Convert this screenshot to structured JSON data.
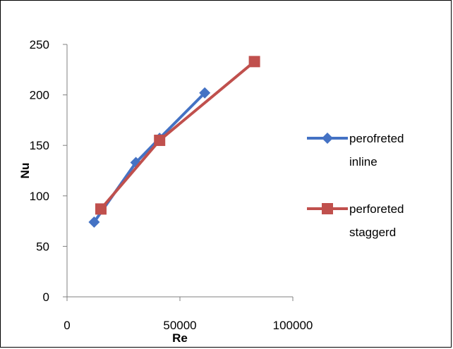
{
  "chart_data": {
    "type": "line",
    "title": "",
    "xlabel": "Re",
    "ylabel": "Nu",
    "xlim": [
      0,
      100000
    ],
    "ylim": [
      0,
      250
    ],
    "xticks": [
      0,
      50000,
      100000
    ],
    "yticks": [
      0,
      50,
      100,
      150,
      200,
      250
    ],
    "xtick_labels": [
      "0",
      "50000",
      "100000"
    ],
    "ytick_labels": [
      "0",
      "50",
      "100",
      "150",
      "200",
      "250"
    ],
    "grid": false,
    "legend_position": "right",
    "series": [
      {
        "name": "perofreted inline",
        "name_lines": [
          "perofreted",
          "inline"
        ],
        "color": "#4472C4",
        "marker": "diamond",
        "points": [
          {
            "x": 12000,
            "y": 74
          },
          {
            "x": 30500,
            "y": 133
          },
          {
            "x": 41000,
            "y": 157
          },
          {
            "x": 61000,
            "y": 202
          }
        ]
      },
      {
        "name": "perforeted staggerd",
        "name_lines": [
          "perforeted",
          "staggerd"
        ],
        "color": "#C0504D",
        "marker": "square",
        "points": [
          {
            "x": 15000,
            "y": 87
          },
          {
            "x": 41000,
            "y": 155
          },
          {
            "x": 83000,
            "y": 233
          }
        ]
      }
    ]
  }
}
